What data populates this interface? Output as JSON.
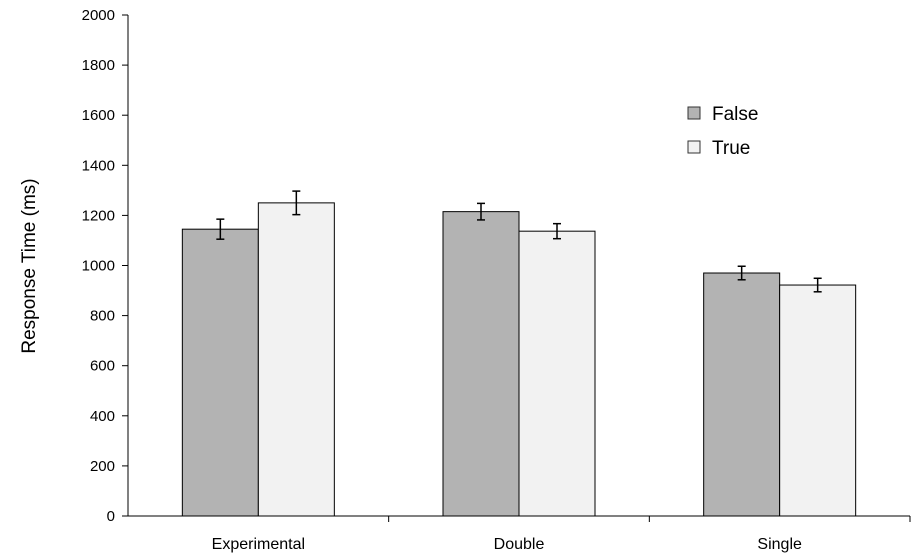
{
  "chart_data": {
    "type": "bar",
    "title": "",
    "xlabel": "",
    "ylabel": "Response Time (ms)",
    "ylim": [
      0,
      2000
    ],
    "yticks": [
      0,
      200,
      400,
      600,
      800,
      1000,
      1200,
      1400,
      1600,
      1800,
      2000
    ],
    "categories": [
      "Experimental",
      "Double",
      "Single"
    ],
    "series": [
      {
        "name": "False",
        "values": [
          1145,
          1215,
          970
        ],
        "errors": [
          40,
          33,
          27
        ],
        "color": "#b3b3b3"
      },
      {
        "name": "True",
        "values": [
          1250,
          1137,
          922
        ],
        "errors": [
          47,
          30,
          27
        ],
        "color": "#f2f2f2"
      }
    ],
    "grid": false,
    "legend": "top-right"
  }
}
